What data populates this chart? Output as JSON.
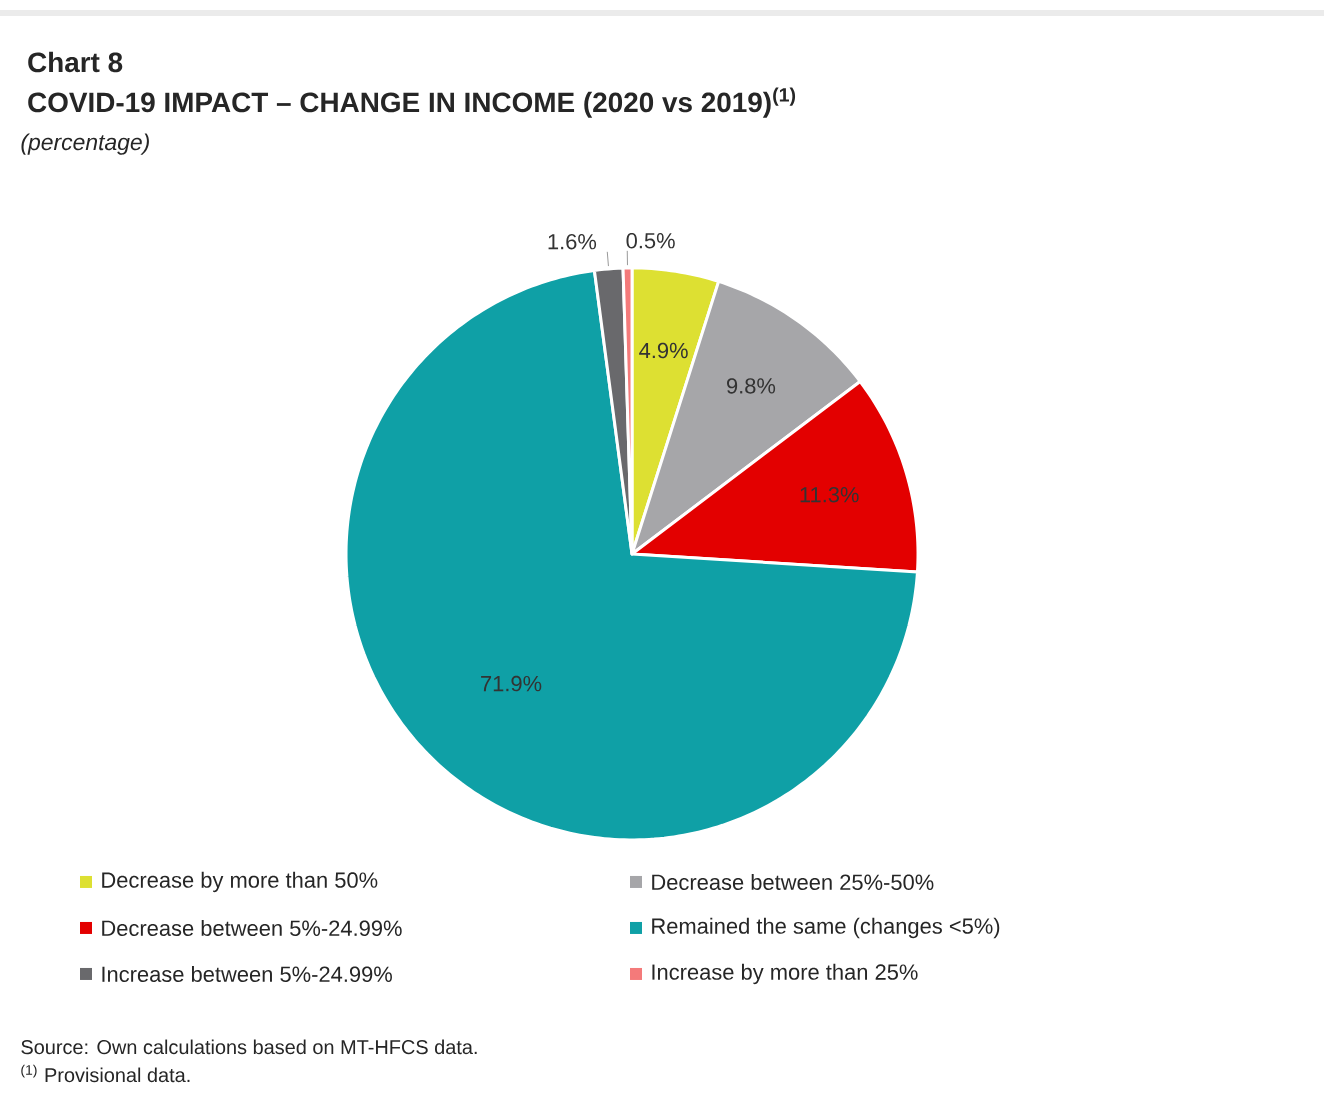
{
  "chart_data": {
    "type": "pie",
    "title": "Chart 8",
    "subtitle": "COVID-19 IMPACT – CHANGE IN INCOME (2020 vs 2019)$^{(1)}$",
    "categories": [
      "Decrease by more than 50%",
      "Decrease between 25%-50%",
      "Decrease between 5%-24.99%",
      "Remained the same (changes <5%)",
      "Increase between 5%-24.99%",
      "Increase by more than 25%"
    ],
    "values": [
      4.9,
      9.8,
      11.3,
      71.9,
      1.6,
      0.5
    ],
    "colors": [
      "#dde032",
      "#a6a6a9",
      "#e30000",
      "#0fa0a6",
      "#69696c",
      "#f47a7a"
    ],
    "value_labels": [
      "4.9%",
      "9.8%",
      "11.3%",
      "71.9%",
      "1.6%",
      "0.5%"
    ],
    "legend": "bottom",
    "annotations": [
      "(percentage)",
      "Source: Own calculations based on MT-HFCS data.",
      "$^{(1)}$ Provisional data."
    ]
  }
}
